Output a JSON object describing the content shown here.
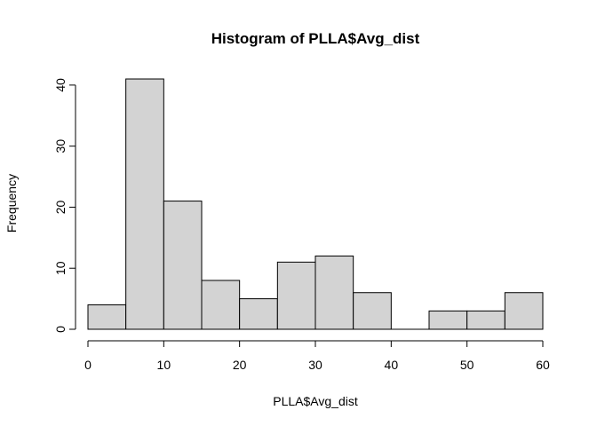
{
  "chart_data": {
    "type": "bar",
    "title": "Histogram of PLLA$Avg_dist",
    "xlabel": "PLLA$Avg_dist",
    "ylabel": "Frequency",
    "bins": [
      {
        "start": 0,
        "end": 5,
        "count": 4
      },
      {
        "start": 5,
        "end": 10,
        "count": 41
      },
      {
        "start": 10,
        "end": 15,
        "count": 21
      },
      {
        "start": 15,
        "end": 20,
        "count": 8
      },
      {
        "start": 20,
        "end": 25,
        "count": 5
      },
      {
        "start": 25,
        "end": 30,
        "count": 11
      },
      {
        "start": 30,
        "end": 35,
        "count": 12
      },
      {
        "start": 35,
        "end": 40,
        "count": 6
      },
      {
        "start": 40,
        "end": 45,
        "count": 0
      },
      {
        "start": 45,
        "end": 50,
        "count": 3
      },
      {
        "start": 50,
        "end": 55,
        "count": 3
      },
      {
        "start": 55,
        "end": 60,
        "count": 6
      }
    ],
    "x_ticks": [
      0,
      10,
      20,
      30,
      40,
      50,
      60
    ],
    "y_ticks": [
      0,
      10,
      20,
      30,
      40
    ],
    "xlim": [
      0,
      60
    ],
    "ylim": [
      0,
      41
    ],
    "grid": false,
    "legend": "none",
    "colors": {
      "bar_fill": "#d3d3d3",
      "bar_stroke": "#000000"
    }
  }
}
